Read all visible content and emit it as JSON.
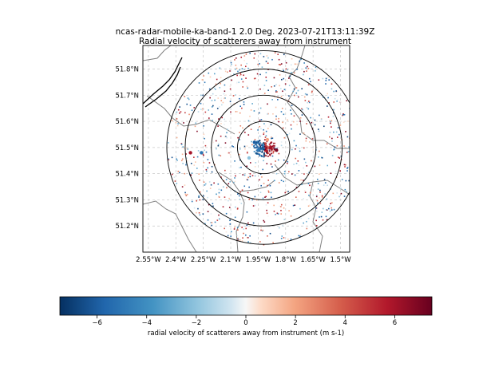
{
  "chart_data": [
    {
      "type": "scatter",
      "title": "ncas-radar-mobile-ka-band-1 2.0 Deg. 2023-07-21T13:11:39Z",
      "subtitle": "Radial velocity of scatterers away from instrument",
      "xlabel": "",
      "ylabel": "",
      "x_tick_labels": [
        "2.55°W",
        "2.4°W",
        "2.25°W",
        "2.1°W",
        "1.95°W",
        "1.8°W",
        "1.65°W",
        "1.5°W"
      ],
      "x_ticks": [
        -2.55,
        -2.4,
        -2.25,
        -2.1,
        -1.95,
        -1.8,
        -1.65,
        -1.5
      ],
      "y_tick_labels": [
        "51.2°N",
        "51.3°N",
        "51.4°N",
        "51.5°N",
        "51.6°N",
        "51.7°N",
        "51.8°N"
      ],
      "y_ticks": [
        51.2,
        51.3,
        51.4,
        51.5,
        51.6,
        51.7,
        51.8
      ],
      "xlim": [
        -2.58,
        -1.45
      ],
      "ylim": [
        51.1,
        51.89
      ],
      "grid": true,
      "grid_style": "dashed",
      "radar_center": {
        "lon": -1.92,
        "lat": 51.5
      },
      "range_rings_deg_lat": [
        0.1,
        0.2,
        0.3,
        0.37
      ],
      "colors": {
        "neg_extreme": "#053061",
        "neg_mid": "#4393c3",
        "zero": "#f7f7f7",
        "pos_mid": "#d6604d",
        "pos_extreme": "#67001f",
        "coastline": "#000000",
        "boundary": "#808080"
      },
      "scatter_note_points": [
        {
          "lon": -1.97,
          "lat": 51.52,
          "value": -6
        },
        {
          "lon": -1.95,
          "lat": 51.49,
          "value": -5
        },
        {
          "lon": -1.88,
          "lat": 51.5,
          "value": 6
        },
        {
          "lon": -1.85,
          "lat": 51.49,
          "value": 7
        },
        {
          "lon": -2.32,
          "lat": 51.48,
          "value": 6
        },
        {
          "lon": -2.26,
          "lat": 51.48,
          "value": -5
        },
        {
          "lon": -2.0,
          "lat": 51.46,
          "value": -2
        },
        {
          "lon": -1.9,
          "lat": 51.53,
          "value": 2
        }
      ]
    },
    {
      "type": "colorbar",
      "label": "radial velocity of scatterers away from instrument (m s-1)",
      "range": [
        -7.5,
        7.5
      ],
      "ticks": [
        -6,
        -4,
        -2,
        0,
        2,
        4,
        6
      ],
      "tick_labels": [
        "−6",
        "−4",
        "−2",
        "0",
        "2",
        "4",
        "6"
      ],
      "colormap": "RdBu_r"
    }
  ]
}
